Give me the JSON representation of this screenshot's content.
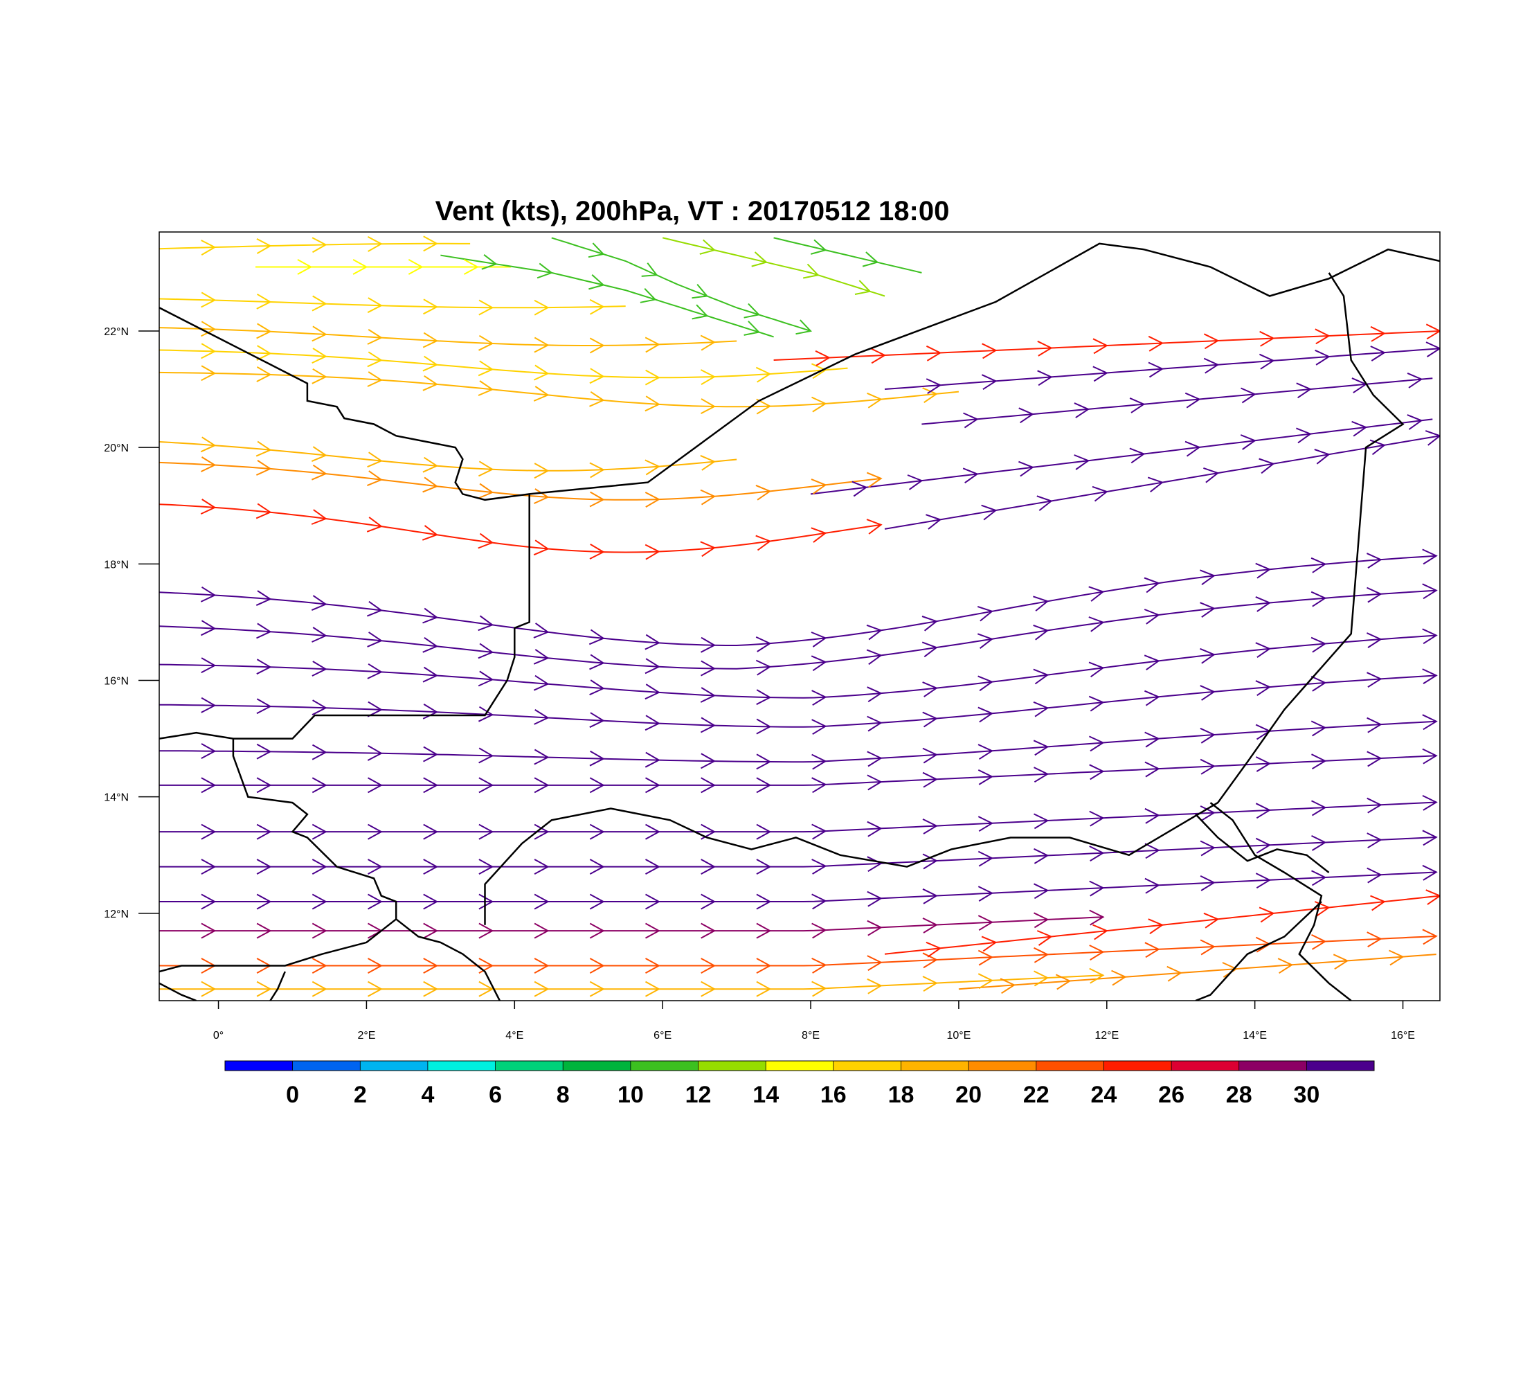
{
  "title": "Vent (kts), 200hPa, VT : 20170512  18:00",
  "map": {
    "lon_range": [
      -0.8,
      16.5
    ],
    "lat_range": [
      10.5,
      23.7
    ],
    "x_ticks": [
      {
        "lon": 0,
        "label": "0°"
      },
      {
        "lon": 2,
        "label": "2°E"
      },
      {
        "lon": 4,
        "label": "4°E"
      },
      {
        "lon": 6,
        "label": "6°E"
      },
      {
        "lon": 8,
        "label": "8°E"
      },
      {
        "lon": 10,
        "label": "10°E"
      },
      {
        "lon": 12,
        "label": "12°E"
      },
      {
        "lon": 14,
        "label": "14°E"
      },
      {
        "lon": 16,
        "label": "16°E"
      }
    ],
    "y_ticks": [
      {
        "lat": 12,
        "label": "12°N"
      },
      {
        "lat": 14,
        "label": "14°N"
      },
      {
        "lat": 16,
        "label": "16°N"
      },
      {
        "lat": 18,
        "label": "18°N"
      },
      {
        "lat": 20,
        "label": "20°N"
      },
      {
        "lat": 22,
        "label": "22°N"
      }
    ],
    "borders": [
      [
        [
          -0.8,
          22.4
        ],
        [
          1.2,
          21.1
        ],
        [
          1.2,
          20.8
        ],
        [
          1.6,
          20.7
        ],
        [
          1.7,
          20.5
        ],
        [
          2.1,
          20.4
        ],
        [
          2.4,
          20.2
        ],
        [
          3.2,
          20.0
        ],
        [
          3.3,
          19.8
        ],
        [
          3.2,
          19.4
        ],
        [
          3.3,
          19.2
        ],
        [
          3.6,
          19.1
        ],
        [
          4.2,
          19.2
        ],
        [
          5.0,
          19.3
        ],
        [
          5.8,
          19.4
        ],
        [
          7.3,
          20.8
        ],
        [
          8.6,
          21.6
        ],
        [
          10.5,
          22.5
        ],
        [
          11.9,
          23.5
        ],
        [
          12.5,
          23.4
        ],
        [
          13.4,
          23.1
        ],
        [
          14.2,
          22.6
        ],
        [
          15.0,
          22.9
        ],
        [
          15.8,
          23.4
        ],
        [
          16.5,
          23.2
        ]
      ],
      [
        [
          4.2,
          19.2
        ],
        [
          4.2,
          17.0
        ],
        [
          4.0,
          16.9
        ],
        [
          4.0,
          16.4
        ],
        [
          3.9,
          16.0
        ],
        [
          3.7,
          15.6
        ],
        [
          3.6,
          15.4
        ],
        [
          2.6,
          15.4
        ],
        [
          1.3,
          15.4
        ],
        [
          1.0,
          15.0
        ],
        [
          0.2,
          15.0
        ],
        [
          -0.3,
          15.1
        ],
        [
          -0.8,
          15.0
        ]
      ],
      [
        [
          0.2,
          15.0
        ],
        [
          0.2,
          14.7
        ],
        [
          0.4,
          14.0
        ],
        [
          1.0,
          13.9
        ],
        [
          1.2,
          13.7
        ],
        [
          1.0,
          13.4
        ],
        [
          1.2,
          13.3
        ],
        [
          1.6,
          12.8
        ],
        [
          2.1,
          12.6
        ],
        [
          2.2,
          12.3
        ],
        [
          2.4,
          12.2
        ],
        [
          2.4,
          11.9
        ],
        [
          2.7,
          11.6
        ],
        [
          3.0,
          11.5
        ],
        [
          3.3,
          11.3
        ],
        [
          3.6,
          11.0
        ],
        [
          3.8,
          10.5
        ]
      ],
      [
        [
          2.4,
          11.9
        ],
        [
          2.0,
          11.5
        ],
        [
          1.4,
          11.3
        ],
        [
          0.9,
          11.1
        ],
        [
          0.0,
          11.1
        ],
        [
          -0.5,
          11.1
        ],
        [
          -0.8,
          11.0
        ]
      ],
      [
        [
          0.9,
          11.0
        ],
        [
          0.8,
          10.7
        ],
        [
          0.7,
          10.5
        ]
      ],
      [
        [
          -0.8,
          10.8
        ],
        [
          -0.5,
          10.6
        ],
        [
          -0.3,
          10.5
        ]
      ],
      [
        [
          3.6,
          11.8
        ],
        [
          3.6,
          12.5
        ],
        [
          4.1,
          13.2
        ],
        [
          4.5,
          13.6
        ],
        [
          5.3,
          13.8
        ],
        [
          6.1,
          13.6
        ],
        [
          6.6,
          13.3
        ],
        [
          7.2,
          13.1
        ],
        [
          7.8,
          13.3
        ],
        [
          8.4,
          13.0
        ],
        [
          9.3,
          12.8
        ],
        [
          9.9,
          13.1
        ],
        [
          10.7,
          13.3
        ],
        [
          11.5,
          13.3
        ],
        [
          12.3,
          13.0
        ],
        [
          13.1,
          13.6
        ],
        [
          13.5,
          13.9
        ],
        [
          13.9,
          14.6
        ],
        [
          14.4,
          15.5
        ],
        [
          15.3,
          16.8
        ],
        [
          15.5,
          20.0
        ],
        [
          16.0,
          20.4
        ],
        [
          15.6,
          20.9
        ],
        [
          15.3,
          21.5
        ],
        [
          15.2,
          22.6
        ],
        [
          15.0,
          23.0
        ]
      ],
      [
        [
          13.4,
          13.9
        ],
        [
          13.7,
          13.6
        ],
        [
          14.0,
          13.0
        ],
        [
          14.4,
          12.7
        ],
        [
          14.9,
          12.3
        ],
        [
          14.8,
          11.8
        ],
        [
          14.6,
          11.3
        ],
        [
          15.0,
          10.8
        ],
        [
          15.3,
          10.5
        ]
      ],
      [
        [
          14.9,
          12.2
        ],
        [
          14.4,
          11.6
        ],
        [
          13.9,
          11.3
        ],
        [
          13.4,
          10.6
        ],
        [
          13.2,
          10.5
        ]
      ],
      [
        [
          13.2,
          13.7
        ],
        [
          13.5,
          13.3
        ],
        [
          13.9,
          12.9
        ],
        [
          14.3,
          13.1
        ],
        [
          14.7,
          13.0
        ],
        [
          15.0,
          12.7
        ]
      ]
    ],
    "speed_colors": [
      "#0000ff",
      "#0064f0",
      "#00b4f0",
      "#00f0e0",
      "#00d27a",
      "#00b43c",
      "#3cc020",
      "#96dc00",
      "#ffff00",
      "#ffd200",
      "#ffb400",
      "#ff8c00",
      "#ff5000",
      "#ff1e00",
      "#dc0032",
      "#8c0064",
      "#4b008c"
    ],
    "legend_labels": [
      "0",
      "2",
      "4",
      "6",
      "8",
      "10",
      "12",
      "14",
      "16",
      "18",
      "20",
      "22",
      "24",
      "26",
      "28",
      "30"
    ],
    "streamlines": [
      {
        "lat0": 23.3,
        "amp": 0.2,
        "center": 3,
        "width": 5,
        "color": "#ffd200",
        "x0": -0.8,
        "x1": 3.5
      },
      {
        "lat0": 23.1,
        "amp": 0.0,
        "center": 2,
        "width": 5,
        "color": "#ffff00",
        "x0": 0.5,
        "x1": 4.0
      },
      {
        "lat0": 22.6,
        "amp": -0.2,
        "center": 4,
        "width": 4,
        "color": "#ffd200",
        "x0": -0.8,
        "x1": 5.5
      },
      {
        "lat0": 22.1,
        "amp": -0.35,
        "center": 5,
        "width": 4,
        "color": "#ffb400",
        "x0": -0.8,
        "x1": 7.0
      },
      {
        "lat0": 21.7,
        "amp": -0.5,
        "center": 6,
        "width": 4,
        "color": "#ffd200",
        "x0": -0.8,
        "x1": 8.5
      },
      {
        "lat0": 21.3,
        "amp": -0.6,
        "center": 7,
        "width": 4,
        "color": "#ffb400",
        "x0": -0.8,
        "x1": 10.0
      },
      {
        "lat0": 20.2,
        "amp": -0.6,
        "center": 4.5,
        "width": 4,
        "color": "#ffb400",
        "x0": -0.8,
        "x1": 7.0
      },
      {
        "lat0": 19.8,
        "amp": -0.7,
        "center": 5.5,
        "width": 4,
        "color": "#ff8c00",
        "x0": -0.8,
        "x1": 9.0
      },
      {
        "lat0": 19.1,
        "amp": -0.9,
        "center": 5.5,
        "width": 4,
        "color": "#ff1e00",
        "x0": -0.8,
        "x1": 9.0
      },
      {
        "lat0": 17.6,
        "amp": -1.0,
        "center": 7,
        "width": 5,
        "color": "#4b008c",
        "x0": -0.8,
        "x1": 16.5
      },
      {
        "lat0": 17.0,
        "amp": -0.8,
        "center": 7,
        "width": 5,
        "color": "#4b008c",
        "x0": -0.8,
        "x1": 16.5
      },
      {
        "lat0": 16.3,
        "amp": -0.6,
        "center": 8,
        "width": 5,
        "color": "#4b008c",
        "x0": -0.8,
        "x1": 16.5
      },
      {
        "lat0": 15.6,
        "amp": -0.4,
        "center": 8,
        "width": 5,
        "color": "#4b008c",
        "x0": -0.8,
        "x1": 16.5
      },
      {
        "lat0": 14.8,
        "amp": -0.2,
        "center": 8,
        "width": 5,
        "color": "#4b008c",
        "x0": -0.8,
        "x1": 16.5
      },
      {
        "lat0": 14.2,
        "amp": 0.0,
        "center": 8,
        "width": 5,
        "color": "#4b008c",
        "x0": -0.8,
        "x1": 16.5
      },
      {
        "lat0": 13.4,
        "amp": 0.0,
        "center": 8,
        "width": 5,
        "color": "#4b008c",
        "x0": -0.8,
        "x1": 16.5
      },
      {
        "lat0": 12.8,
        "amp": 0.0,
        "center": 8,
        "width": 5,
        "color": "#4b008c",
        "x0": -0.8,
        "x1": 16.5
      },
      {
        "lat0": 12.2,
        "amp": 0.0,
        "center": 8,
        "width": 5,
        "color": "#4b008c",
        "x0": -0.8,
        "x1": 16.5
      },
      {
        "lat0": 11.7,
        "amp": 0.0,
        "center": 8,
        "width": 5,
        "color": "#8c0064",
        "x0": -0.8,
        "x1": 12.0
      },
      {
        "lat0": 11.1,
        "amp": 0.0,
        "center": 8,
        "width": 5,
        "color": "#ff5000",
        "x0": -0.8,
        "x1": 16.5
      },
      {
        "lat0": 10.7,
        "amp": 0.0,
        "center": 8,
        "width": 5,
        "color": "#ffb400",
        "x0": -0.8,
        "x1": 12.0
      }
    ],
    "east_tilt": [
      {
        "lat0": 21.5,
        "lat1": 22.0,
        "x0": 7.5,
        "x1": 16.5,
        "color": "#ff1e00"
      },
      {
        "lat0": 21.0,
        "lat1": 21.7,
        "x0": 9.0,
        "x1": 16.5,
        "color": "#4b008c"
      },
      {
        "lat0": 20.4,
        "lat1": 21.2,
        "x0": 9.5,
        "x1": 16.5,
        "color": "#4b008c"
      },
      {
        "lat0": 19.2,
        "lat1": 20.5,
        "x0": 8.0,
        "x1": 16.5,
        "color": "#4b008c"
      },
      {
        "lat0": 18.6,
        "lat1": 20.2,
        "x0": 9.0,
        "x1": 16.5,
        "color": "#4b008c"
      },
      {
        "lat0": 11.3,
        "lat1": 12.3,
        "x0": 9.0,
        "x1": 16.5,
        "color": "#ff1e00"
      },
      {
        "lat0": 10.7,
        "lat1": 11.3,
        "x0": 10.0,
        "x1": 16.5,
        "color": "#ff8c00"
      }
    ],
    "north_jet": [
      {
        "pts": [
          [
            3.0,
            23.3
          ],
          [
            4.5,
            23.0
          ],
          [
            5.5,
            22.7
          ],
          [
            6.5,
            22.3
          ],
          [
            7.5,
            21.9
          ]
        ],
        "color": "#3cc020"
      },
      {
        "pts": [
          [
            4.5,
            23.6
          ],
          [
            5.5,
            23.2
          ],
          [
            6.2,
            22.8
          ],
          [
            7.0,
            22.4
          ],
          [
            8.0,
            22.0
          ]
        ],
        "color": "#3cc020"
      },
      {
        "pts": [
          [
            6.0,
            23.6
          ],
          [
            7.0,
            23.3
          ],
          [
            8.0,
            23.0
          ],
          [
            9.0,
            22.6
          ]
        ],
        "color": "#96dc00"
      },
      {
        "pts": [
          [
            7.5,
            23.6
          ],
          [
            8.5,
            23.3
          ],
          [
            9.5,
            23.0
          ]
        ],
        "color": "#3cc020"
      }
    ]
  }
}
